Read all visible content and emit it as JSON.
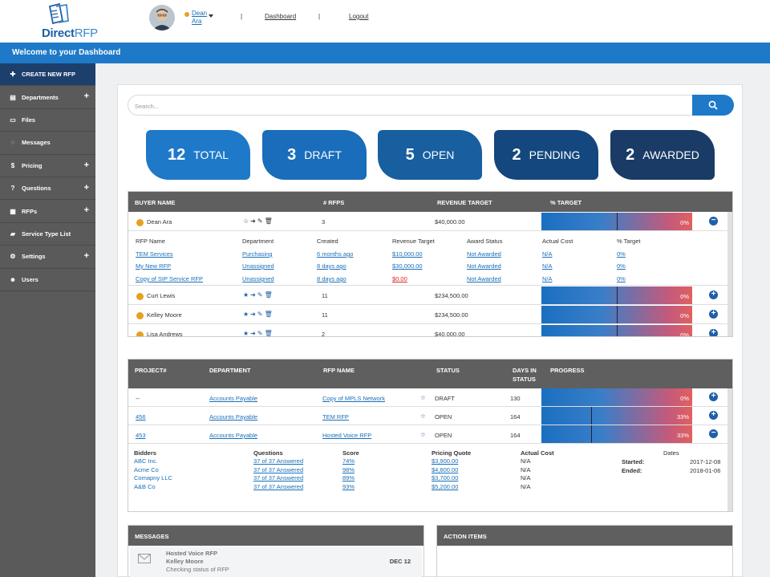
{
  "brand": {
    "name_bold": "Direct",
    "name_light": "RFP"
  },
  "user": {
    "name": "Dean Ara"
  },
  "nav": {
    "dashboard": "Dashboard",
    "logout": "Logout",
    "separator": "|"
  },
  "welcome": "Welcome to your Dashboard",
  "sidebar": {
    "items": [
      {
        "label": "CREATE NEW RFP",
        "icon": "plus-icon",
        "expandable": false
      },
      {
        "label": "Departments",
        "icon": "building-icon",
        "expandable": true
      },
      {
        "label": "Files",
        "icon": "folder-icon",
        "expandable": false
      },
      {
        "label": "Messages",
        "icon": "chat-icon",
        "expandable": false
      },
      {
        "label": "Pricing",
        "icon": "dollar-icon",
        "expandable": true
      },
      {
        "label": "Questions",
        "icon": "question-icon",
        "expandable": true
      },
      {
        "label": "RFPs",
        "icon": "document-icon",
        "expandable": true
      },
      {
        "label": "Service Type List",
        "icon": "book-icon",
        "expandable": false
      },
      {
        "label": "Settings",
        "icon": "gear-icon",
        "expandable": true
      },
      {
        "label": "Users",
        "icon": "users-icon",
        "expandable": false
      }
    ]
  },
  "search": {
    "placeholder": "Search..."
  },
  "stats": [
    {
      "count": "12",
      "label": "TOTAL",
      "color": "#1e79c8"
    },
    {
      "count": "3",
      "label": "DRAFT",
      "color": "#1a6dba"
    },
    {
      "count": "5",
      "label": "OPEN",
      "color": "#175f9f"
    },
    {
      "count": "2",
      "label": "PENDING",
      "color": "#14477d"
    },
    {
      "count": "2",
      "label": "AWARDED",
      "color": "#1a3b66"
    }
  ],
  "buyers": {
    "headers": {
      "name": "BUYER NAME",
      "rfps": "# RFPS",
      "revenue": "REVENUE TARGET",
      "target": "% TARGET"
    },
    "expanded": {
      "name": "Dean Ara",
      "rfps": "3",
      "revenue": "$40,000.00",
      "pct": "0%",
      "progress": 0,
      "sub_headers": {
        "rfp": "RFP Name",
        "dept": "Department",
        "created": "Created",
        "revenue": "Revenue Target",
        "award": "Award Status",
        "cost": "Actual Cost",
        "target": "% Target"
      },
      "sub_rows": [
        {
          "rfp": "TEM Services",
          "dept": "Purchasing",
          "created": "6 months ago",
          "revenue": "$10,000.00",
          "award": "Not Awarded",
          "cost": "N/A",
          "target": "0%"
        },
        {
          "rfp": "My New RFP",
          "dept": "Unassigned",
          "created": "8 days ago",
          "revenue": "$30,000.00",
          "award": "Not Awarded",
          "cost": "N/A",
          "target": "0%"
        },
        {
          "rfp": "Copy of SIP Service RFP",
          "dept": "Unassigned",
          "created": "8 days ago",
          "revenue": "$0.00",
          "award": "Not Awarded",
          "cost": "N/A",
          "target": "0%"
        }
      ]
    },
    "rows": [
      {
        "name": "Curt Lewis",
        "rfps": "11",
        "revenue": "$234,500.00",
        "pct": "0%"
      },
      {
        "name": "Kelley Moore",
        "rfps": "11",
        "revenue": "$234,500.00",
        "pct": "0%"
      },
      {
        "name": "Lisa Andrews",
        "rfps": "2",
        "revenue": "$40,000.00",
        "pct": "0%"
      }
    ]
  },
  "projects": {
    "headers": {
      "project": "PROJECT#",
      "dept": "DEPARTMENT",
      "rfp": "RFP NAME",
      "status": "STATUS",
      "days_1": "DAYS IN",
      "days_2": "STATUS",
      "progress": "PROGRESS"
    },
    "rows": [
      {
        "project": "--",
        "dept": "Accounts Payable",
        "rfp": "Copy of MPLS Network",
        "status": "DRAFT",
        "days": "130",
        "pct": "0%",
        "progress": 0,
        "expanded": false
      },
      {
        "project": "456",
        "dept": "Accounts Payable",
        "rfp": "TEM RFP",
        "status": "OPEN",
        "days": "164",
        "pct": "33%",
        "progress": 0.33,
        "expanded": false
      },
      {
        "project": "453",
        "dept": "Accounts Payable",
        "rfp": "Hosted Voice RFP",
        "status": "OPEN",
        "days": "164",
        "pct": "33%",
        "progress": 0.33,
        "expanded": true
      }
    ],
    "detail": {
      "headers": {
        "bidders": "Bidders",
        "questions": "Questions",
        "score": "Score",
        "pricing": "Pricing Quote",
        "cost": "Actual Cost",
        "dates": "Dates"
      },
      "bids": [
        {
          "bidder": "ABC Inc.",
          "questions": "37 of 37 Answered",
          "score": "74%",
          "pricing": "$3,900.00",
          "cost": "N/A"
        },
        {
          "bidder": "Acme Co",
          "questions": "37 of 37 Answered",
          "score": "98%",
          "pricing": "$4,800.00",
          "cost": "N/A"
        },
        {
          "bidder": "Comapny LLC",
          "questions": "37 of 37 Answered",
          "score": "89%",
          "pricing": "$3,700.00",
          "cost": "N/A"
        },
        {
          "bidder": "A&B Co",
          "questions": "37 of 37 Answered",
          "score": "93%",
          "pricing": "$5,200.00",
          "cost": "N/A"
        }
      ],
      "started_label": "Started:",
      "started": "2017-12-08",
      "ended_label": "Ended:",
      "ended": "2018-01-06"
    }
  },
  "messages": {
    "title": "MESSAGES",
    "items": [
      {
        "subject": "Hosted Voice RFP",
        "from": "Kelley Moore",
        "preview": "Checking status of RFP",
        "date": "DEC 12"
      }
    ]
  },
  "actions": {
    "title": "ACTION ITEMS"
  }
}
